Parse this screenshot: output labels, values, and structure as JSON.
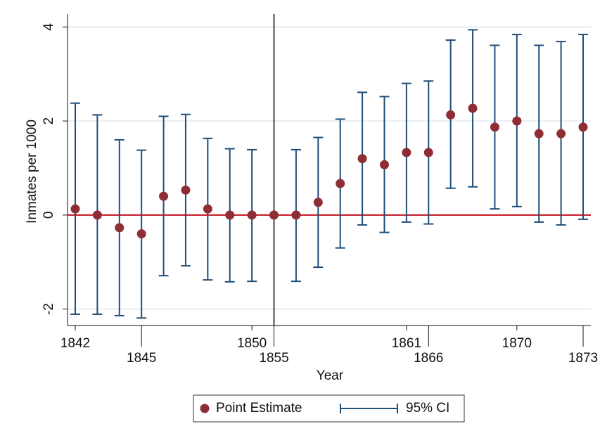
{
  "chart_data": {
    "type": "errorbar",
    "x_label": "Year",
    "y_label": "Inmates per 1000",
    "categories": [
      "1842",
      null,
      null,
      "1845",
      null,
      null,
      null,
      null,
      "1850",
      "1855",
      null,
      null,
      null,
      null,
      null,
      "1861",
      "1866",
      null,
      null,
      null,
      "1870",
      null,
      null,
      "1873"
    ],
    "series": [
      {
        "name": "Point Estimate",
        "color": "#8f2d35",
        "values": [
          0.13,
          0,
          -0.27,
          -0.4,
          0.4,
          0.53,
          0.13,
          0,
          0,
          0,
          0,
          0.27,
          0.67,
          1.2,
          1.07,
          1.33,
          1.33,
          2.13,
          2.27,
          1.87,
          2.0,
          1.73,
          1.73,
          1.87
        ]
      },
      {
        "name": "95% CI",
        "color": "#1f4e79",
        "lower": [
          -2.11,
          -2.11,
          -2.14,
          -2.19,
          -1.29,
          -1.08,
          -1.38,
          -1.42,
          -1.41,
          null,
          -1.41,
          -1.11,
          -0.7,
          -0.21,
          -0.37,
          -0.15,
          -0.19,
          0.57,
          0.6,
          0.13,
          0.18,
          -0.15,
          -0.21,
          -0.09
        ],
        "upper": [
          2.38,
          2.13,
          1.6,
          1.38,
          2.1,
          2.14,
          1.63,
          1.41,
          1.39,
          null,
          1.39,
          1.65,
          2.04,
          2.61,
          2.52,
          2.8,
          2.85,
          3.72,
          3.94,
          3.61,
          3.84,
          3.61,
          3.69,
          3.84
        ]
      }
    ],
    "ylim": [
      -2.35,
      4.2
    ],
    "yticks": [
      -2,
      0,
      2,
      4
    ],
    "grid": true,
    "yline": 0,
    "yline_color": "#c8101e",
    "xline": "1855",
    "xline_color": "#000000",
    "legend": "bottom"
  }
}
